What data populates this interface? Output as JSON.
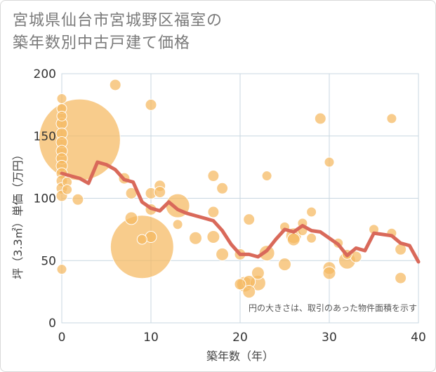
{
  "title_lines": [
    "宮城県仙台市宮城野区福室の",
    "築年数別中古戸建て価格"
  ],
  "chart_data": {
    "type": "scatter",
    "xlabel": "築年数（年）",
    "ylabel": "坪（3.3㎡）単価（万円）",
    "xlim": [
      0,
      40
    ],
    "ylim": [
      0,
      200
    ],
    "xticks": [
      0,
      10,
      20,
      30,
      40
    ],
    "yticks": [
      0,
      50,
      100,
      150,
      200
    ],
    "grid": true,
    "note": "円の大きさは、取引のあった物件面積を示す",
    "colors": {
      "bubble": "#f5b95f",
      "line": "#d9695a",
      "grid": "#c8d7e1"
    },
    "bubbles": [
      {
        "x": 0,
        "y": 180,
        "r": 7
      },
      {
        "x": 0,
        "y": 172,
        "r": 7
      },
      {
        "x": 0,
        "y": 166,
        "r": 7
      },
      {
        "x": 0,
        "y": 160,
        "r": 8
      },
      {
        "x": 0,
        "y": 152,
        "r": 8
      },
      {
        "x": 0,
        "y": 145,
        "r": 8
      },
      {
        "x": 0,
        "y": 138,
        "r": 8
      },
      {
        "x": 0,
        "y": 132,
        "r": 8
      },
      {
        "x": 0,
        "y": 126,
        "r": 8
      },
      {
        "x": 0,
        "y": 120,
        "r": 8
      },
      {
        "x": 0,
        "y": 114,
        "r": 8
      },
      {
        "x": 0,
        "y": 108,
        "r": 8
      },
      {
        "x": 0,
        "y": 102,
        "r": 8
      },
      {
        "x": 0,
        "y": 43,
        "r": 7
      },
      {
        "x": 0.6,
        "y": 113,
        "r": 7
      },
      {
        "x": 0.6,
        "y": 107,
        "r": 7
      },
      {
        "x": 2,
        "y": 147,
        "r": 58
      },
      {
        "x": 1.8,
        "y": 99,
        "r": 8
      },
      {
        "x": 6,
        "y": 191,
        "r": 8
      },
      {
        "x": 7,
        "y": 116,
        "r": 8
      },
      {
        "x": 7.8,
        "y": 104,
        "r": 8
      },
      {
        "x": 7.8,
        "y": 84,
        "r": 9
      },
      {
        "x": 9,
        "y": 61,
        "r": 45
      },
      {
        "x": 9,
        "y": 67,
        "r": 7
      },
      {
        "x": 10,
        "y": 175,
        "r": 8
      },
      {
        "x": 10,
        "y": 104,
        "r": 8
      },
      {
        "x": 10,
        "y": 91,
        "r": 8
      },
      {
        "x": 10,
        "y": 69,
        "r": 8
      },
      {
        "x": 11,
        "y": 110,
        "r": 8
      },
      {
        "x": 11,
        "y": 105,
        "r": 8
      },
      {
        "x": 13,
        "y": 94,
        "r": 17
      },
      {
        "x": 13,
        "y": 79,
        "r": 7
      },
      {
        "x": 15,
        "y": 68,
        "r": 9
      },
      {
        "x": 17,
        "y": 118,
        "r": 8
      },
      {
        "x": 17,
        "y": 89,
        "r": 8
      },
      {
        "x": 17,
        "y": 69,
        "r": 9
      },
      {
        "x": 18,
        "y": 108,
        "r": 8
      },
      {
        "x": 18,
        "y": 55,
        "r": 9
      },
      {
        "x": 20,
        "y": 55,
        "r": 8
      },
      {
        "x": 20,
        "y": 31,
        "r": 8
      },
      {
        "x": 20.5,
        "y": 31,
        "r": 11
      },
      {
        "x": 21,
        "y": 83,
        "r": 8
      },
      {
        "x": 21,
        "y": 33,
        "r": 9
      },
      {
        "x": 21,
        "y": 25,
        "r": 9
      },
      {
        "x": 22,
        "y": 40,
        "r": 9
      },
      {
        "x": 22,
        "y": 32,
        "r": 11
      },
      {
        "x": 23,
        "y": 118,
        "r": 7
      },
      {
        "x": 23,
        "y": 56,
        "r": 11
      },
      {
        "x": 25,
        "y": 77,
        "r": 7
      },
      {
        "x": 25,
        "y": 47,
        "r": 9
      },
      {
        "x": 26,
        "y": 70,
        "r": 11
      },
      {
        "x": 26,
        "y": 67,
        "r": 9
      },
      {
        "x": 27,
        "y": 80,
        "r": 7
      },
      {
        "x": 27,
        "y": 74,
        "r": 7
      },
      {
        "x": 28,
        "y": 89,
        "r": 7
      },
      {
        "x": 28,
        "y": 68,
        "r": 7
      },
      {
        "x": 29,
        "y": 164,
        "r": 8
      },
      {
        "x": 30,
        "y": 129,
        "r": 7
      },
      {
        "x": 30,
        "y": 44,
        "r": 9
      },
      {
        "x": 30,
        "y": 40,
        "r": 9
      },
      {
        "x": 31,
        "y": 64,
        "r": 7
      },
      {
        "x": 32,
        "y": 50,
        "r": 12
      },
      {
        "x": 32,
        "y": 55,
        "r": 7
      },
      {
        "x": 33,
        "y": 53,
        "r": 8
      },
      {
        "x": 35,
        "y": 75,
        "r": 7
      },
      {
        "x": 37,
        "y": 164,
        "r": 7
      },
      {
        "x": 37,
        "y": 72,
        "r": 7
      },
      {
        "x": 38,
        "y": 59,
        "r": 8
      },
      {
        "x": 38,
        "y": 36,
        "r": 8
      }
    ],
    "line": {
      "x": [
        0,
        1,
        2,
        3,
        4,
        5,
        6,
        7,
        8,
        9,
        10,
        11,
        12,
        13,
        14,
        15,
        16,
        17,
        18,
        19,
        20,
        21,
        22,
        23,
        24,
        25,
        26,
        27,
        28,
        29,
        30,
        31,
        32,
        33,
        34,
        35,
        36,
        37,
        38,
        39,
        40
      ],
      "y": [
        120,
        118,
        116,
        112,
        129,
        127,
        123,
        115,
        113,
        97,
        92,
        90,
        97,
        91,
        88,
        86,
        84,
        82,
        74,
        63,
        55,
        55,
        53,
        58,
        67,
        75,
        73,
        78,
        74,
        73,
        68,
        63,
        54,
        60,
        58,
        72,
        71,
        70,
        64,
        62,
        49
      ]
    }
  }
}
